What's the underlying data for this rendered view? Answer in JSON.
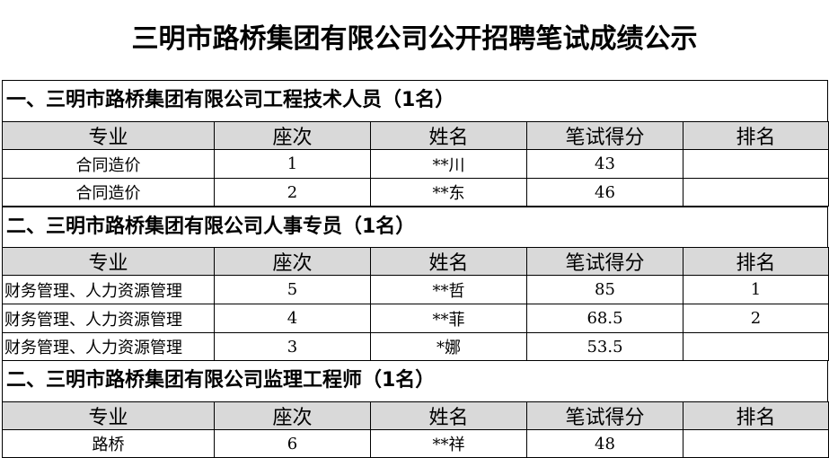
{
  "title": "三明市路桥集团有限公司公开招聘笔试成绩公示",
  "columns": [
    "专业",
    "座次",
    "姓名",
    "笔试得分",
    "排名"
  ],
  "sections": [
    {
      "heading": "一、三明市路桥集团有限公司工程技术人员（1名）",
      "rows": [
        [
          "合同造价",
          "1",
          "**川",
          "43",
          ""
        ],
        [
          "合同造价",
          "2",
          "**东",
          "46",
          ""
        ]
      ]
    },
    {
      "heading": "二、三明市路桥集团有限公司人事专员（1名）",
      "rows": [
        [
          "财务管理、人力资源管理",
          "5",
          "**哲",
          "85",
          "1"
        ],
        [
          "财务管理、人力资源管理",
          "4",
          "**菲",
          "68.5",
          "2"
        ],
        [
          "财务管理、人力资源管理",
          "3",
          "*娜",
          "53.5",
          ""
        ]
      ]
    },
    {
      "heading": "二、三明市路桥集团有限公司监理工程师（1名）",
      "rows": [
        [
          "路桥",
          "6",
          "**祥",
          "48",
          ""
        ]
      ]
    }
  ]
}
